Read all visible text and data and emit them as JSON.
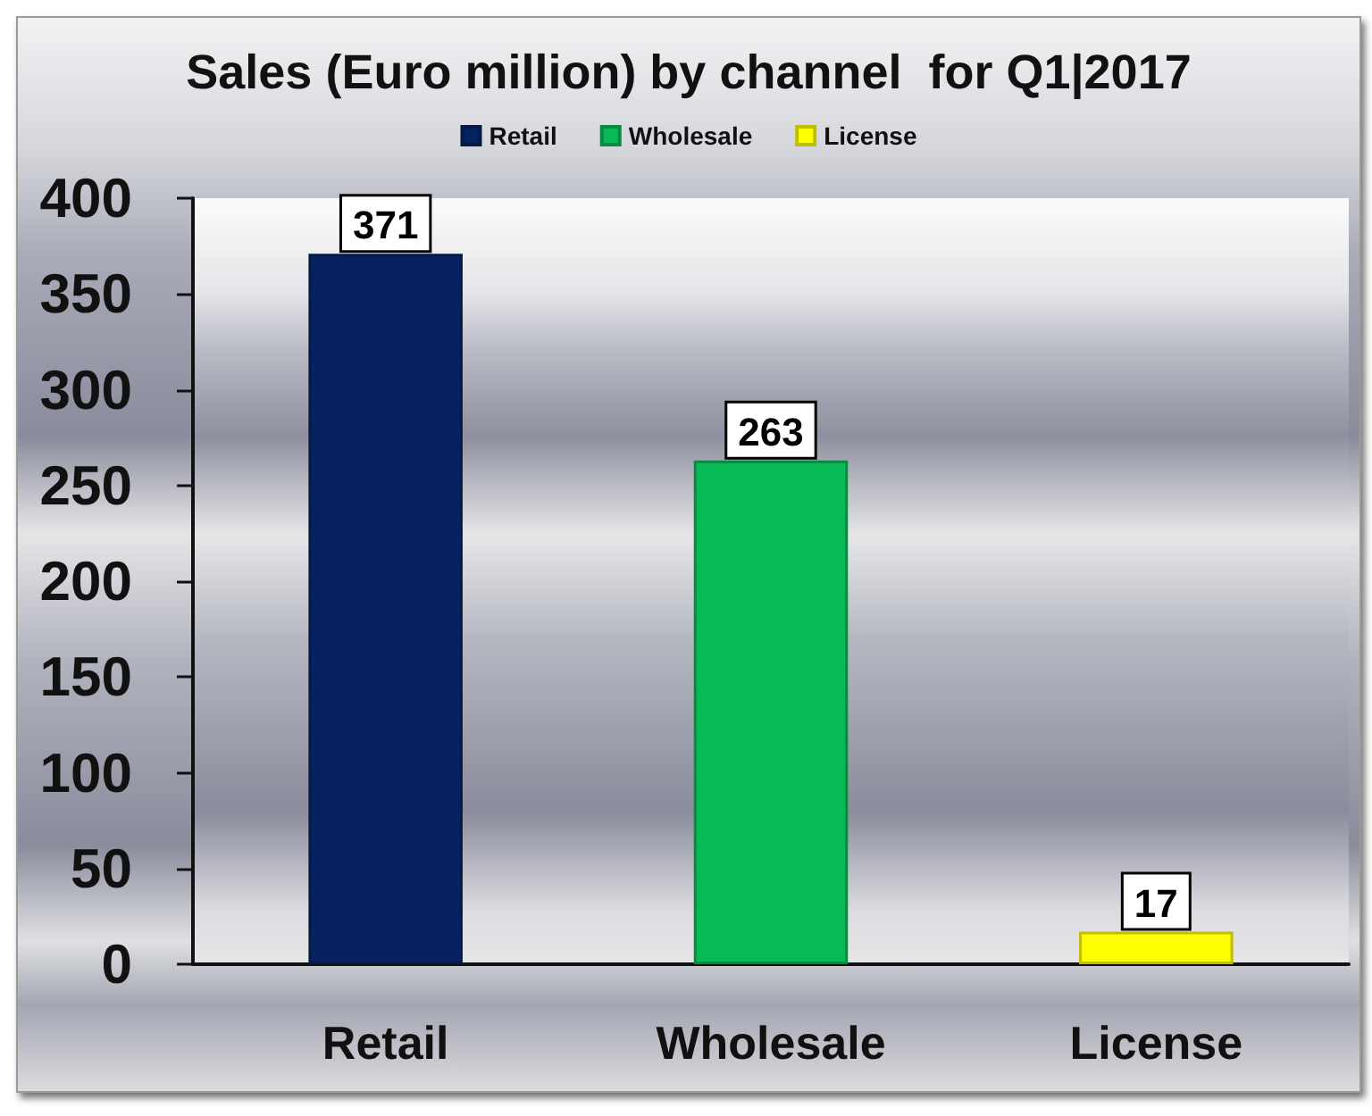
{
  "chart_data": {
    "type": "bar",
    "title": "Sales (Euro million) by channel  for Q1|2017",
    "categories": [
      "Retail",
      "Wholesale",
      "License"
    ],
    "series": [
      {
        "name": "Retail",
        "color": "#06235f",
        "values": [
          371,
          null,
          null
        ]
      },
      {
        "name": "Wholesale",
        "color": "#08b956",
        "values": [
          null,
          263,
          null
        ]
      },
      {
        "name": "License",
        "color": "#ffff00",
        "values": [
          null,
          null,
          17
        ]
      }
    ],
    "stacked": true,
    "ylim": [
      0,
      400
    ],
    "yticks": [
      0,
      50,
      100,
      150,
      200,
      250,
      300,
      350,
      400
    ],
    "grid": false,
    "legend": "top",
    "data_labels": true
  }
}
